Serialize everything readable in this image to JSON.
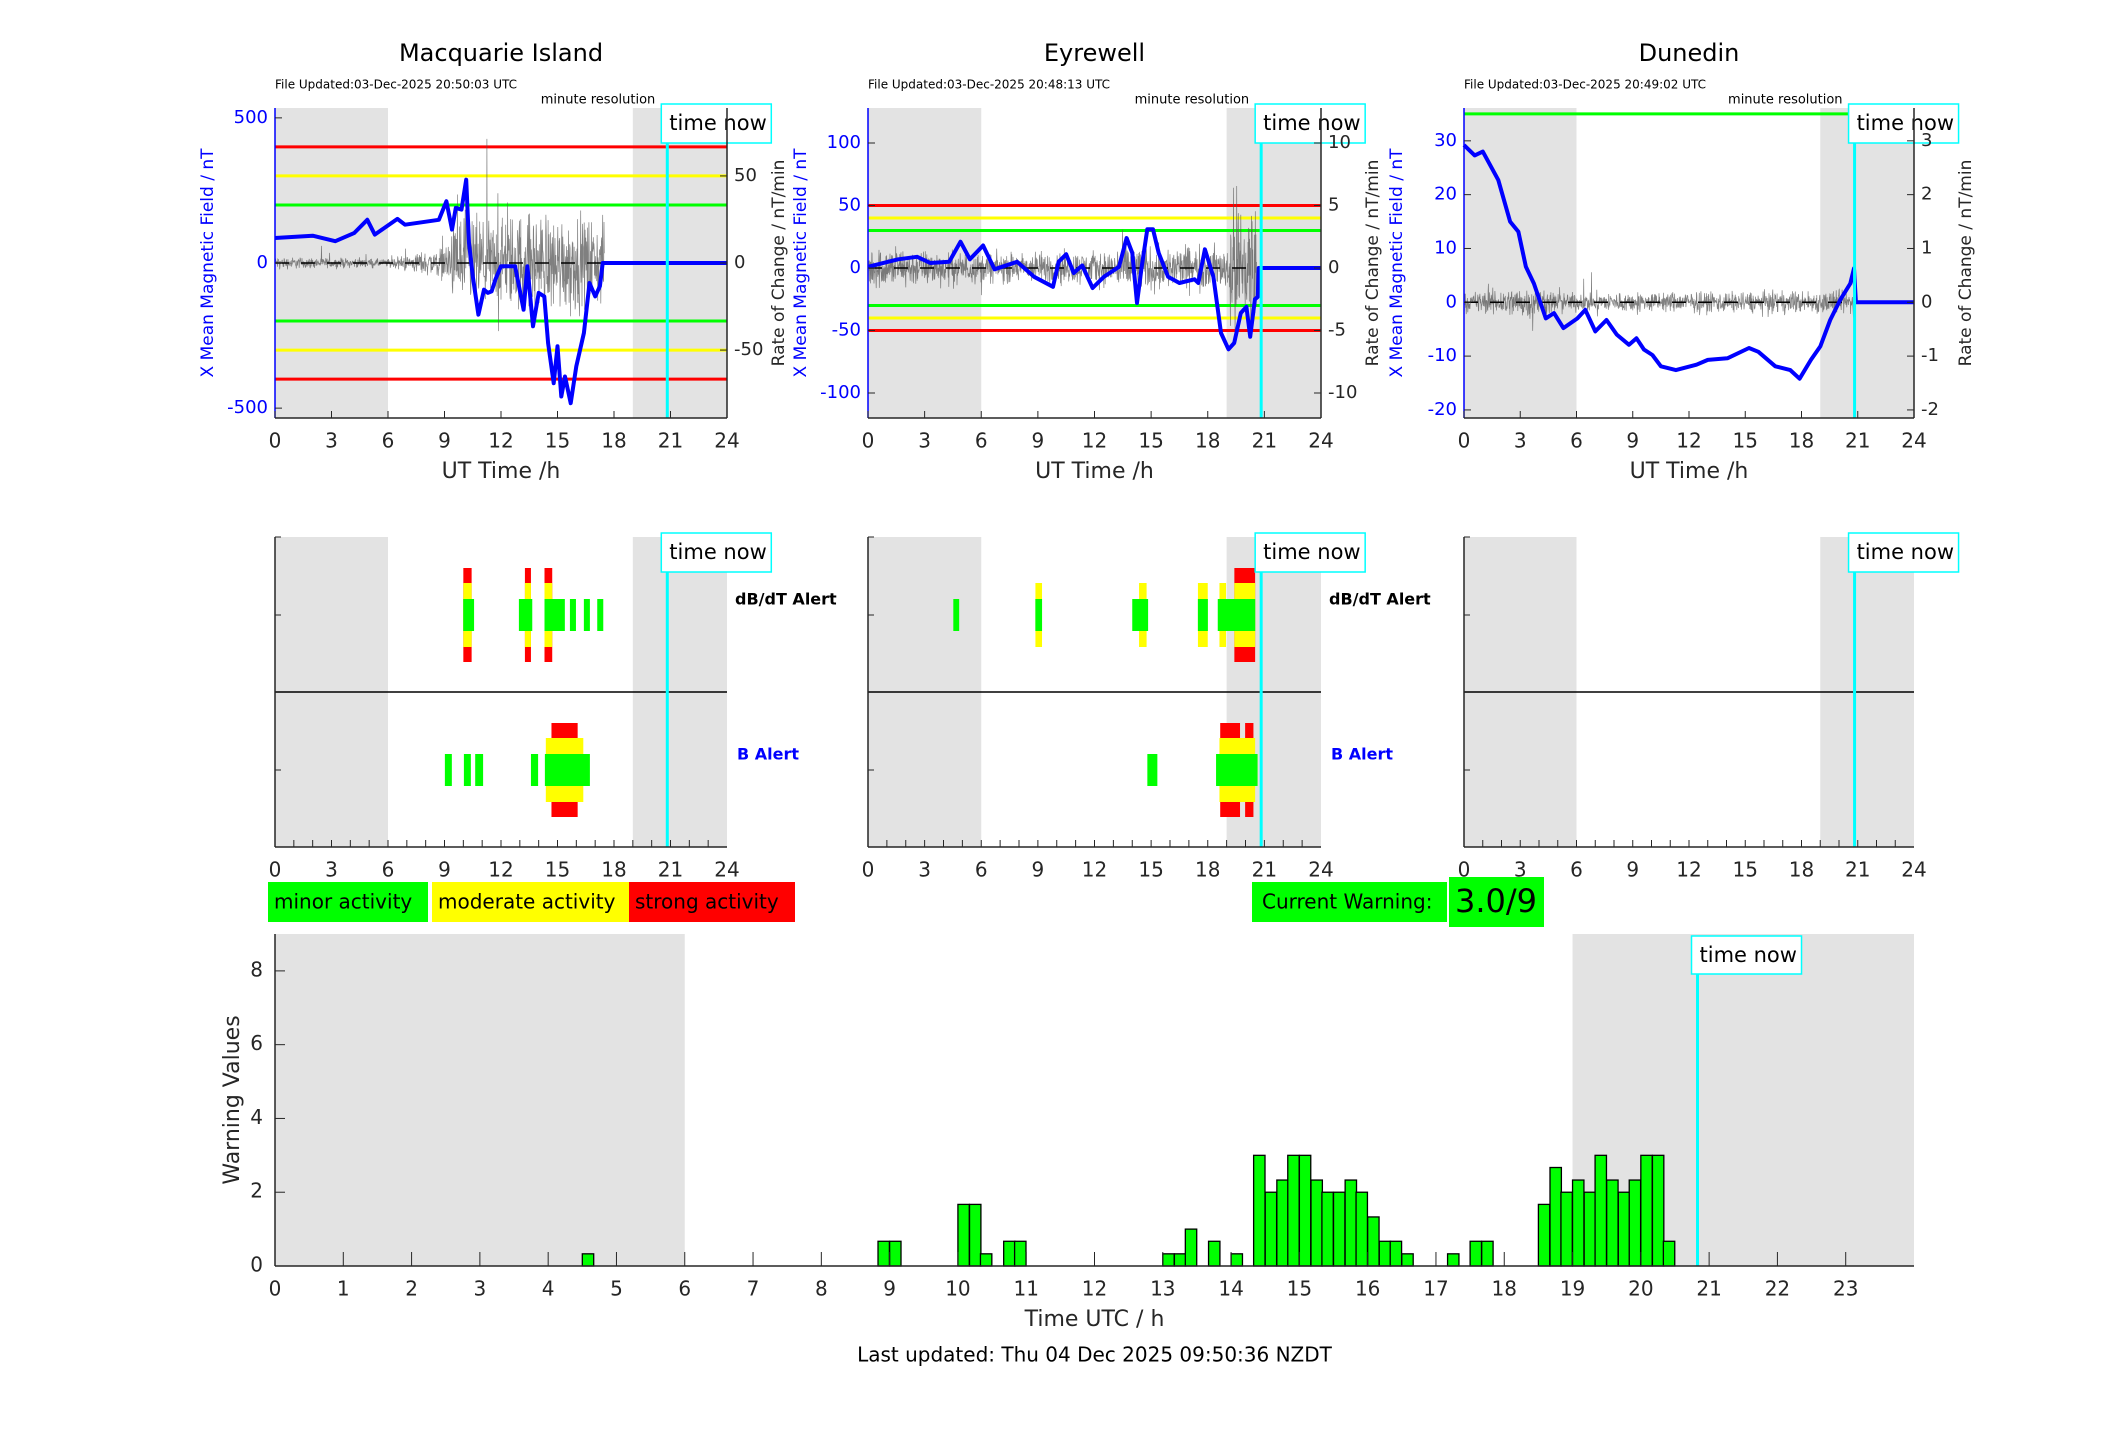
{
  "time_now_hour": 20.83,
  "time_now_label": "time now",
  "night_shading": [
    [
      0,
      6
    ],
    [
      19,
      24
    ]
  ],
  "xticks": [
    0,
    3,
    6,
    9,
    12,
    15,
    18,
    21,
    24
  ],
  "colors": {
    "field": "#0000ff",
    "rate": "#555555",
    "time_now": "#00ffff",
    "shade": "#e3e3e3",
    "minor": "#00ff00",
    "moderate": "#ffff00",
    "strong": "#ff0000"
  },
  "alert_labels": {
    "dbdt": "dB/dT Alert",
    "b": "B Alert"
  },
  "stations": [
    {
      "title": "Macquarie Island",
      "file_updated": "File Updated:03-Dec-2025 20:50:03 UTC",
      "resolution": "minute resolution",
      "xlabel": "UT Time /h",
      "ylabel_left": "X Mean Magnetic Field / nT",
      "ylabel_right": "Rate of Change / nT/min",
      "ylim": [
        -534,
        534
      ],
      "yticks": [
        "-500",
        "0",
        "500"
      ],
      "rate_ylim": [
        -89,
        89
      ],
      "rate_yticks": [
        "-50",
        "0",
        "50"
      ],
      "thresholds": [
        {
          "value": 400,
          "color": "#ff0000"
        },
        {
          "value": 300,
          "color": "#ffff00"
        },
        {
          "value": 200,
          "color": "#00ff00"
        },
        {
          "value": -200,
          "color": "#00ff00"
        },
        {
          "value": -300,
          "color": "#ffff00"
        },
        {
          "value": -400,
          "color": "#ff0000"
        }
      ],
      "field": [
        [
          0,
          86
        ],
        [
          2,
          94
        ],
        [
          3.2,
          75
        ],
        [
          4.2,
          103
        ],
        [
          4.9,
          149
        ],
        [
          5.3,
          98
        ],
        [
          6.5,
          152
        ],
        [
          6.9,
          132
        ],
        [
          8.7,
          149
        ],
        [
          9.1,
          213
        ],
        [
          9.4,
          115
        ],
        [
          9.6,
          190
        ],
        [
          9.9,
          184
        ],
        [
          10.15,
          287
        ],
        [
          10.3,
          69
        ],
        [
          10.5,
          -46
        ],
        [
          10.8,
          -178
        ],
        [
          11.1,
          -92
        ],
        [
          11.3,
          -103
        ],
        [
          11.5,
          -98
        ],
        [
          11.7,
          -57
        ],
        [
          12,
          -11
        ],
        [
          12.75,
          -11
        ],
        [
          13.2,
          -161
        ],
        [
          13.4,
          -11
        ],
        [
          13.7,
          -218
        ],
        [
          14,
          -103
        ],
        [
          14.3,
          -115
        ],
        [
          14.5,
          -276
        ],
        [
          14.8,
          -414
        ],
        [
          15,
          -287
        ],
        [
          15.2,
          -460
        ],
        [
          15.4,
          -391
        ],
        [
          15.7,
          -483
        ],
        [
          16,
          -356
        ],
        [
          16.4,
          -241
        ],
        [
          16.7,
          -69
        ],
        [
          17,
          -115
        ],
        [
          17.25,
          -80
        ],
        [
          17.4,
          0
        ],
        [
          24,
          0
        ]
      ],
      "rate_envelope": [
        [
          0,
          3
        ],
        [
          6,
          2
        ],
        [
          9,
          8
        ],
        [
          10,
          30
        ],
        [
          11,
          20
        ],
        [
          13,
          25
        ],
        [
          15,
          25
        ],
        [
          17.5,
          20
        ]
      ],
      "rate_end": 17.5,
      "dbdt_alerts": [
        {
          "start": 10.0,
          "end": 10.57,
          "level": 1
        },
        {
          "start": 10.0,
          "end": 10.44,
          "level": 3
        },
        {
          "start": 12.95,
          "end": 13.66,
          "level": 1
        },
        {
          "start": 13.27,
          "end": 13.59,
          "level": 3
        },
        {
          "start": 14.31,
          "end": 15.39,
          "level": 1
        },
        {
          "start": 14.31,
          "end": 14.72,
          "level": 3
        },
        {
          "start": 15.66,
          "end": 15.98,
          "level": 1
        },
        {
          "start": 16.4,
          "end": 16.72,
          "level": 1
        },
        {
          "start": 17.11,
          "end": 17.43,
          "level": 1
        }
      ],
      "b_alerts": [
        {
          "start": 9.02,
          "end": 9.39,
          "level": 1
        },
        {
          "start": 10.03,
          "end": 10.4,
          "level": 1
        },
        {
          "start": 10.63,
          "end": 11.05,
          "level": 1
        },
        {
          "start": 13.59,
          "end": 13.97,
          "level": 1
        },
        {
          "start": 14.68,
          "end": 16.07,
          "level": 3
        },
        {
          "start": 14.38,
          "end": 16.37,
          "level": 2
        },
        {
          "start": 14.33,
          "end": 16.72,
          "level": 1
        }
      ]
    },
    {
      "title": "Eyrewell",
      "file_updated": "File Updated:03-Dec-2025 20:48:13 UTC",
      "resolution": "minute resolution",
      "xlabel": "UT Time /h",
      "ylabel_left": "X Mean Magnetic Field / nT",
      "ylabel_right": "Rate of Change / nT/min",
      "ylim": [
        -120,
        128
      ],
      "yticks": [
        "-100",
        "-50",
        "0",
        "50",
        "100"
      ],
      "rate_ylim": [
        -12,
        12.8
      ],
      "rate_yticks": [
        "-10",
        "-5",
        "0",
        "5",
        "10"
      ],
      "thresholds": [
        {
          "value": 50,
          "color": "#ff0000"
        },
        {
          "value": 40,
          "color": "#ffff00"
        },
        {
          "value": 30,
          "color": "#00ff00"
        },
        {
          "value": -30,
          "color": "#00ff00"
        },
        {
          "value": -40,
          "color": "#ffff00"
        },
        {
          "value": -50,
          "color": "#ff0000"
        }
      ],
      "field": [
        [
          0,
          1
        ],
        [
          1.6,
          7
        ],
        [
          2.6,
          9
        ],
        [
          3.3,
          4
        ],
        [
          4.3,
          5
        ],
        [
          4.9,
          21
        ],
        [
          5.4,
          7
        ],
        [
          6.1,
          18
        ],
        [
          6.7,
          -1
        ],
        [
          7.9,
          5
        ],
        [
          8.8,
          -7
        ],
        [
          9.8,
          -15
        ],
        [
          10.1,
          5
        ],
        [
          10.5,
          11
        ],
        [
          10.9,
          -4
        ],
        [
          11.35,
          2
        ],
        [
          11.9,
          -16
        ],
        [
          12.5,
          -7
        ],
        [
          13.3,
          1
        ],
        [
          13.7,
          24
        ],
        [
          14,
          12
        ],
        [
          14.25,
          -28
        ],
        [
          14.5,
          1
        ],
        [
          14.8,
          31
        ],
        [
          15.1,
          31
        ],
        [
          15.4,
          12
        ],
        [
          15.9,
          -7
        ],
        [
          16.5,
          -12
        ],
        [
          17.3,
          -9
        ],
        [
          17.5,
          -12
        ],
        [
          17.85,
          15
        ],
        [
          18.3,
          -7
        ],
        [
          18.7,
          -52
        ],
        [
          19.1,
          -65
        ],
        [
          19.4,
          -60
        ],
        [
          19.75,
          -36
        ],
        [
          20.05,
          -31
        ],
        [
          20.25,
          -55
        ],
        [
          20.5,
          -25
        ],
        [
          20.65,
          -23
        ],
        [
          20.7,
          0
        ],
        [
          24,
          0
        ]
      ],
      "rate_envelope": [
        [
          0,
          1.5
        ],
        [
          6,
          1.0
        ],
        [
          13,
          1.2
        ],
        [
          13.5,
          2
        ],
        [
          15,
          1.5
        ],
        [
          19,
          1.5
        ],
        [
          19.3,
          5
        ],
        [
          20.6,
          5
        ]
      ],
      "rate_end": 20.6,
      "dbdt_alerts": [
        {
          "start": 4.52,
          "end": 4.83,
          "level": 1
        },
        {
          "start": 8.87,
          "end": 9.22,
          "level": 2
        },
        {
          "start": 8.87,
          "end": 9.22,
          "level": 1
        },
        {
          "start": 14.36,
          "end": 14.76,
          "level": 2
        },
        {
          "start": 14.0,
          "end": 14.84,
          "level": 1
        },
        {
          "start": 17.48,
          "end": 18.0,
          "level": 2
        },
        {
          "start": 17.48,
          "end": 18.0,
          "level": 1
        },
        {
          "start": 18.62,
          "end": 18.97,
          "level": 2
        },
        {
          "start": 19.41,
          "end": 20.51,
          "level": 3
        },
        {
          "start": 18.53,
          "end": 20.51,
          "level": 1
        }
      ],
      "b_alerts": [
        {
          "start": 14.8,
          "end": 15.33,
          "level": 1
        },
        {
          "start": 18.66,
          "end": 19.71,
          "level": 3
        },
        {
          "start": 19.98,
          "end": 20.42,
          "level": 3
        },
        {
          "start": 18.62,
          "end": 20.51,
          "level": 2
        },
        {
          "start": 18.44,
          "end": 20.64,
          "level": 1
        }
      ]
    },
    {
      "title": "Dunedin",
      "file_updated": "File Updated:03-Dec-2025 20:49:02 UTC",
      "resolution": "minute resolution",
      "xlabel": "UT Time /h",
      "ylabel_left": "X Mean Magnetic Field / nT",
      "ylabel_right": "Rate of Change / nT/min",
      "ylim": [
        -21.5,
        36.1
      ],
      "yticks": [
        "-20",
        "-10",
        "0",
        "10",
        "20",
        "30"
      ],
      "rate_ylim": [
        -2.15,
        3.61
      ],
      "rate_yticks": [
        "-2",
        "-1",
        "0",
        "1",
        "2",
        "3"
      ],
      "thresholds": [
        {
          "value": 35,
          "color": "#00ff00"
        }
      ],
      "field": [
        [
          0,
          29.2
        ],
        [
          0.57,
          27.3
        ],
        [
          1,
          28
        ],
        [
          1.83,
          22.7
        ],
        [
          2.46,
          15
        ],
        [
          2.9,
          13.1
        ],
        [
          3.3,
          6.6
        ],
        [
          3.73,
          3.5
        ],
        [
          4.36,
          -3
        ],
        [
          4.8,
          -2
        ],
        [
          5.3,
          -4.8
        ],
        [
          6.05,
          -3
        ],
        [
          6.47,
          -1.4
        ],
        [
          7,
          -5.4
        ],
        [
          7.6,
          -3.3
        ],
        [
          8.15,
          -6
        ],
        [
          8.8,
          -7.9
        ],
        [
          9.2,
          -6.7
        ],
        [
          9.6,
          -8.8
        ],
        [
          10.05,
          -9.8
        ],
        [
          10.5,
          -11.9
        ],
        [
          11.3,
          -12.6
        ],
        [
          12.4,
          -11.6
        ],
        [
          13,
          -10.7
        ],
        [
          14.05,
          -10.4
        ],
        [
          15.2,
          -8.5
        ],
        [
          15.7,
          -9.2
        ],
        [
          16.6,
          -11.9
        ],
        [
          17.4,
          -12.6
        ],
        [
          17.9,
          -14.2
        ],
        [
          18.5,
          -10.7
        ],
        [
          19,
          -8.2
        ],
        [
          19.53,
          -3.3
        ],
        [
          20.06,
          0.4
        ],
        [
          20.6,
          3.5
        ],
        [
          20.8,
          6.3
        ],
        [
          20.9,
          0
        ],
        [
          24,
          0
        ]
      ],
      "rate_envelope": [
        [
          0,
          0.15
        ],
        [
          3,
          0.25
        ],
        [
          4,
          0.25
        ],
        [
          5,
          0.15
        ],
        [
          19,
          0.18
        ],
        [
          20.8,
          0.2
        ]
      ],
      "rate_end": 20.8,
      "dbdt_alerts": [],
      "b_alerts": []
    }
  ],
  "legend": [
    {
      "label": "minor activity",
      "color": "#00ff00"
    },
    {
      "label": "moderate activity",
      "color": "#ffff00"
    },
    {
      "label": "strong activity",
      "color": "#ff0000"
    }
  ],
  "current_warning": {
    "label": "Current Warning:",
    "value": "3.0/9",
    "color": "#00ff00"
  },
  "chart_data": {
    "type": "bar",
    "title": "",
    "xlabel": "Time UTC / h",
    "ylabel": "Warning Values",
    "xlim": [
      0,
      24
    ],
    "ylim": [
      0,
      9
    ],
    "xticks": [
      "0",
      "1",
      "2",
      "3",
      "4",
      "5",
      "6",
      "7",
      "8",
      "9",
      "10",
      "11",
      "12",
      "13",
      "14",
      "15",
      "16",
      "17",
      "18",
      "19",
      "20",
      "21",
      "22",
      "23"
    ],
    "yticks": [
      "0",
      "2",
      "4",
      "6",
      "8"
    ],
    "bin_width_h": 0.1667,
    "bar_color": "#00ff00",
    "x": [
      4.5,
      8.83,
      9.0,
      10.0,
      10.17,
      10.33,
      10.67,
      10.83,
      13.0,
      13.17,
      13.33,
      13.67,
      14.0,
      14.33,
      14.5,
      14.67,
      14.83,
      15.0,
      15.17,
      15.33,
      15.5,
      15.67,
      15.83,
      16.0,
      16.17,
      16.33,
      16.5,
      17.17,
      17.5,
      17.67,
      18.5,
      18.67,
      18.83,
      19.0,
      19.17,
      19.33,
      19.5,
      19.67,
      19.83,
      20.0,
      20.17,
      20.33
    ],
    "values": [
      0.33,
      0.67,
      0.67,
      1.67,
      1.67,
      0.33,
      0.67,
      0.67,
      0.33,
      0.33,
      1.0,
      0.67,
      0.33,
      3,
      2,
      2.33,
      3,
      3,
      2.33,
      2,
      2,
      2.33,
      2,
      1.33,
      0.67,
      0.67,
      0.33,
      0.33,
      0.67,
      0.67,
      1.67,
      2.67,
      2,
      2.33,
      2,
      3,
      2.33,
      2,
      2.33,
      3,
      3,
      0.67
    ],
    "shaded_regions": [
      [
        0,
        6
      ],
      [
        19,
        24
      ]
    ],
    "grid": false
  },
  "footer": "Last updated: Thu 04 Dec 2025 09:50:36 NZDT"
}
